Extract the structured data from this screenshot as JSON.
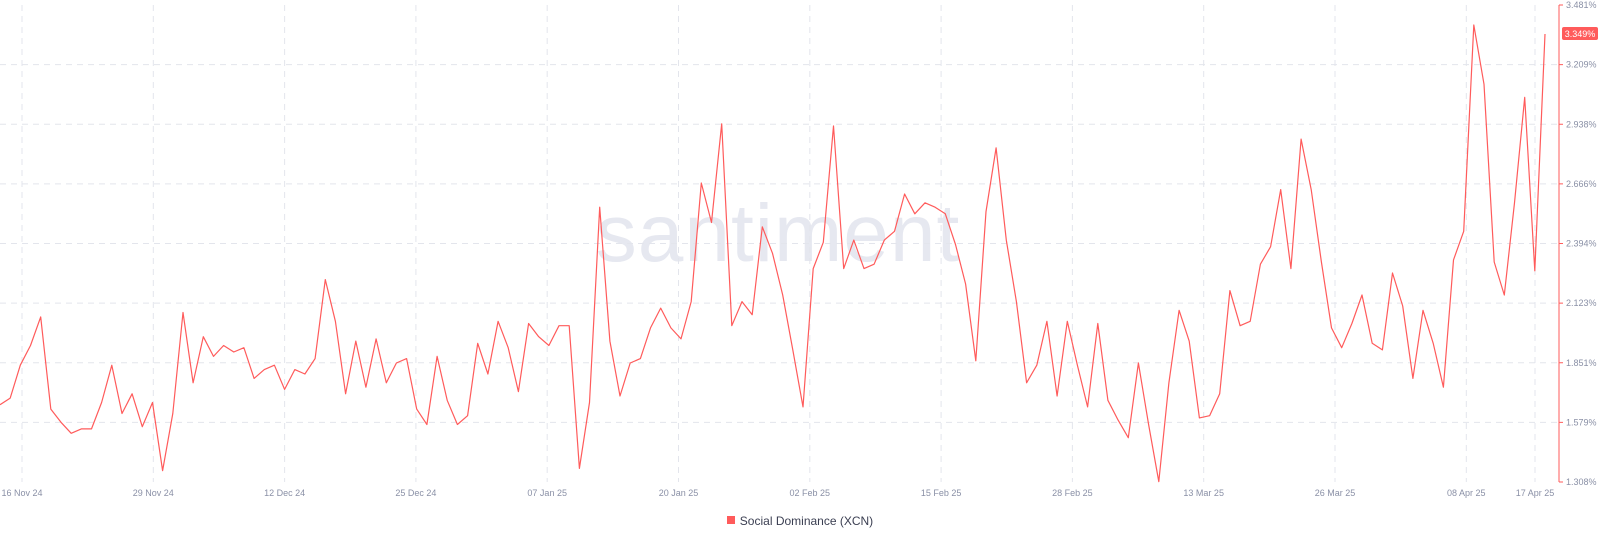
{
  "watermark": "santiment",
  "colors": {
    "series": "#ff5b5b",
    "grid": "#e3e5ec",
    "axis_text": "#8a90a6",
    "badge_bg": "#ff5b5b"
  },
  "legend": {
    "label": "Social Dominance (XCN)"
  },
  "chart_data": {
    "type": "line",
    "title": "",
    "xlabel": "",
    "ylabel": "",
    "y_axis_side": "right",
    "ylim": [
      1.308,
      3.481
    ],
    "y_ticks": [
      "3.481%",
      "3.209%",
      "2.938%",
      "2.666%",
      "2.394%",
      "2.123%",
      "1.851%",
      "1.579%",
      "1.308%"
    ],
    "x_ticks": [
      "16 Nov 24",
      "29 Nov 24",
      "12 Dec 24",
      "25 Dec 24",
      "07 Jan 25",
      "20 Jan 25",
      "02 Feb 25",
      "15 Feb 25",
      "28 Feb 25",
      "13 Mar 25",
      "26 Mar 25",
      "08 Apr 25",
      "17 Apr 25"
    ],
    "grid": true,
    "legend_position": "bottom-center",
    "last_value_label": "3.349%",
    "series": [
      {
        "name": "Social Dominance (XCN)",
        "values": [
          1.66,
          1.69,
          1.84,
          1.93,
          2.06,
          1.64,
          1.58,
          1.53,
          1.55,
          1.55,
          1.67,
          1.84,
          1.62,
          1.71,
          1.56,
          1.67,
          1.36,
          1.62,
          2.08,
          1.76,
          1.97,
          1.88,
          1.93,
          1.9,
          1.92,
          1.78,
          1.82,
          1.84,
          1.73,
          1.82,
          1.8,
          1.87,
          2.23,
          2.04,
          1.71,
          1.95,
          1.74,
          1.96,
          1.76,
          1.85,
          1.87,
          1.64,
          1.57,
          1.88,
          1.68,
          1.57,
          1.61,
          1.94,
          1.8,
          2.04,
          1.92,
          1.72,
          2.03,
          1.97,
          1.93,
          2.02,
          2.02,
          1.37,
          1.67,
          2.56,
          1.95,
          1.7,
          1.85,
          1.87,
          2.01,
          2.1,
          2.01,
          1.96,
          2.13,
          2.67,
          2.49,
          2.94,
          2.02,
          2.13,
          2.07,
          2.47,
          2.35,
          2.16,
          1.91,
          1.65,
          2.28,
          2.4,
          2.93,
          2.28,
          2.41,
          2.28,
          2.3,
          2.41,
          2.45,
          2.62,
          2.53,
          2.58,
          2.56,
          2.53,
          2.39,
          2.21,
          1.86,
          2.54,
          2.83,
          2.41,
          2.13,
          1.76,
          1.84,
          2.04,
          1.7,
          2.04,
          1.84,
          1.65,
          2.03,
          1.68,
          1.59,
          1.51,
          1.85,
          1.57,
          1.31,
          1.76,
          2.09,
          1.95,
          1.6,
          1.61,
          1.71,
          2.18,
          2.02,
          2.04,
          2.3,
          2.38,
          2.64,
          2.28,
          2.87,
          2.64,
          2.31,
          2.01,
          1.92,
          2.03,
          2.16,
          1.94,
          1.91,
          2.26,
          2.11,
          1.78,
          2.09,
          1.94,
          1.74,
          2.32,
          2.45,
          3.39,
          3.12,
          2.31,
          2.16,
          2.58,
          3.06,
          2.27,
          3.349
        ]
      }
    ]
  }
}
